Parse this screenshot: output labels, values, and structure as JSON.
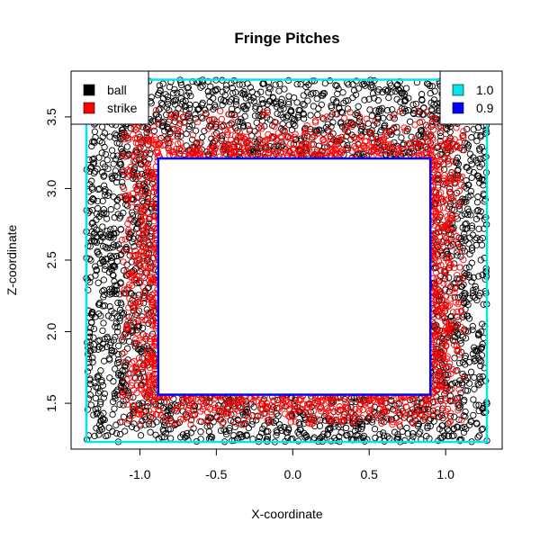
{
  "chart_data": {
    "type": "scatter",
    "title": "Fringe Pitches",
    "xlabel": "X-coordinate",
    "ylabel": "Z-coordinate",
    "xlim": [
      -1.45,
      1.37
    ],
    "ylim": [
      1.18,
      3.82
    ],
    "x_ticks": [
      {
        "value": -1.0,
        "label": "-1.0"
      },
      {
        "value": -0.5,
        "label": "-0.5"
      },
      {
        "value": 0.0,
        "label": "0.0"
      },
      {
        "value": 0.5,
        "label": "0.5"
      },
      {
        "value": 1.0,
        "label": "1.0"
      }
    ],
    "y_ticks": [
      {
        "value": 1.5,
        "label": "1.5"
      },
      {
        "value": 2.0,
        "label": "2.0"
      },
      {
        "value": 2.5,
        "label": "2.5"
      },
      {
        "value": 3.0,
        "label": "3.0"
      },
      {
        "value": 3.5,
        "label": "3.5"
      }
    ],
    "series": [
      {
        "name": "ball",
        "color": "#000000",
        "marker": "open-circle",
        "region": {
          "outer": [
            -1.35,
            1.27,
            1.23,
            3.76
          ],
          "inner_excluded": [
            -0.88,
            0.9,
            1.56,
            3.21
          ]
        }
      },
      {
        "name": "strike",
        "color": "#ff0000",
        "marker": "open-circle",
        "region": {
          "outer": [
            -1.12,
            1.12,
            1.35,
            3.55
          ],
          "inner_excluded": [
            -0.88,
            0.9,
            1.56,
            3.21
          ]
        }
      }
    ],
    "zones": [
      {
        "name": "1.0",
        "color": "#00e5ee",
        "x": [
          -1.35,
          1.27
        ],
        "z": [
          1.23,
          3.76
        ]
      },
      {
        "name": "0.9",
        "color": "#0000ff",
        "x": [
          -0.88,
          0.9
        ],
        "z": [
          1.56,
          3.21
        ]
      }
    ],
    "legend_left": {
      "placement": "top-left",
      "entries": [
        {
          "label": "ball",
          "color": "#000000"
        },
        {
          "label": "strike",
          "color": "#ff0000"
        }
      ]
    },
    "legend_right": {
      "placement": "top-right",
      "entries": [
        {
          "label": "1.0",
          "color": "#00e5ee"
        },
        {
          "label": "0.9",
          "color": "#0000ff"
        }
      ]
    },
    "grid": false
  }
}
